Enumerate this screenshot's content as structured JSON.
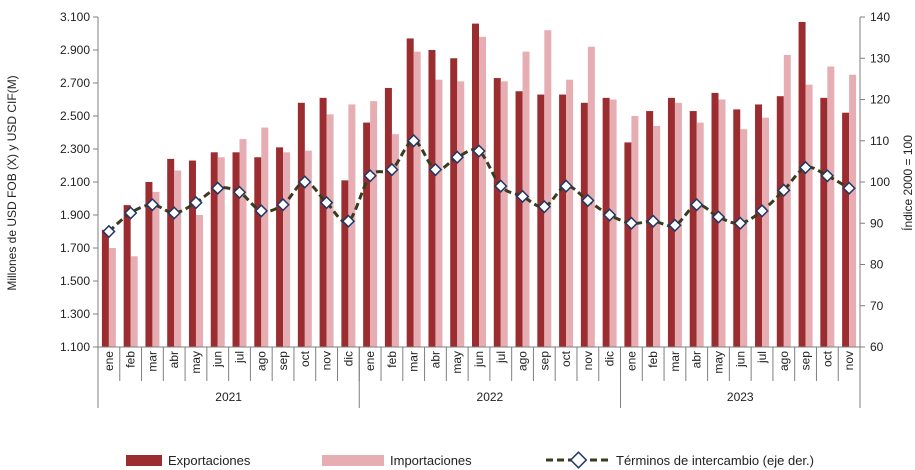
{
  "chart_data": {
    "type": "bar",
    "categories": [
      "ene",
      "feb",
      "mar",
      "abr",
      "may",
      "jun",
      "jul",
      "ago",
      "sep",
      "oct",
      "nov",
      "dic",
      "ene",
      "feb",
      "mar",
      "abr",
      "may",
      "jun",
      "jul",
      "ago",
      "sep",
      "oct",
      "nov",
      "dic",
      "ene",
      "feb",
      "mar",
      "abr",
      "may",
      "jun",
      "jul",
      "ago",
      "sep",
      "oct",
      "nov"
    ],
    "years": [
      {
        "label": "2021",
        "start": 0,
        "count": 12
      },
      {
        "label": "2022",
        "start": 12,
        "count": 12
      },
      {
        "label": "2023",
        "start": 24,
        "count": 11
      }
    ],
    "series": [
      {
        "name": "Exportaciones",
        "type": "bar",
        "axis": "left",
        "color": "#9B2D30",
        "values": [
          1810,
          1960,
          2100,
          2240,
          2230,
          2280,
          2280,
          2250,
          2310,
          2580,
          2610,
          2110,
          2460,
          2670,
          2970,
          2900,
          2850,
          3060,
          2730,
          2650,
          2630,
          2630,
          2580,
          2610,
          2340,
          2530,
          2610,
          2530,
          2640,
          2540,
          2570,
          2620,
          3070,
          2610,
          2520
        ]
      },
      {
        "name": "Importaciones",
        "type": "bar",
        "axis": "left",
        "color": "#E6AEB3",
        "values": [
          1700,
          1650,
          2040,
          2170,
          1900,
          2250,
          2360,
          2430,
          2280,
          2290,
          2510,
          2570,
          2590,
          2390,
          2890,
          2720,
          2710,
          2980,
          2710,
          2890,
          3020,
          2720,
          2920,
          2600,
          2500,
          2440,
          2580,
          2460,
          2600,
          2420,
          2490,
          2870,
          2690,
          2800,
          2750
        ]
      },
      {
        "name": "Términos de intercambio (eje der.)",
        "type": "line",
        "axis": "right",
        "color": "#3B3B1F",
        "marker_edge": "#1F3864",
        "values": [
          88,
          92.5,
          94.5,
          92.5,
          95,
          98.5,
          97.5,
          93,
          94.5,
          100,
          95,
          90.5,
          101.5,
          103,
          110,
          103,
          106,
          107.5,
          99,
          96.5,
          94,
          99,
          95.5,
          92,
          90,
          90.5,
          89.5,
          94.5,
          91.5,
          90,
          93,
          98,
          103.5,
          101.5,
          98.5
        ]
      }
    ],
    "ylabel": "Millones de USD FOB (X) y USD CIF(M)",
    "y2label": "Índice 2000 = 100",
    "ylim": [
      1100,
      3100
    ],
    "yticks": [
      "1.100",
      "1.300",
      "1.500",
      "1.700",
      "1.900",
      "2.100",
      "2.300",
      "2.500",
      "2.700",
      "2.900",
      "3.100"
    ],
    "y2lim": [
      60,
      140
    ],
    "y2ticks": [
      "60",
      "70",
      "80",
      "90",
      "100",
      "110",
      "120",
      "130",
      "140"
    ],
    "grid": false,
    "legend_position": "bottom"
  }
}
